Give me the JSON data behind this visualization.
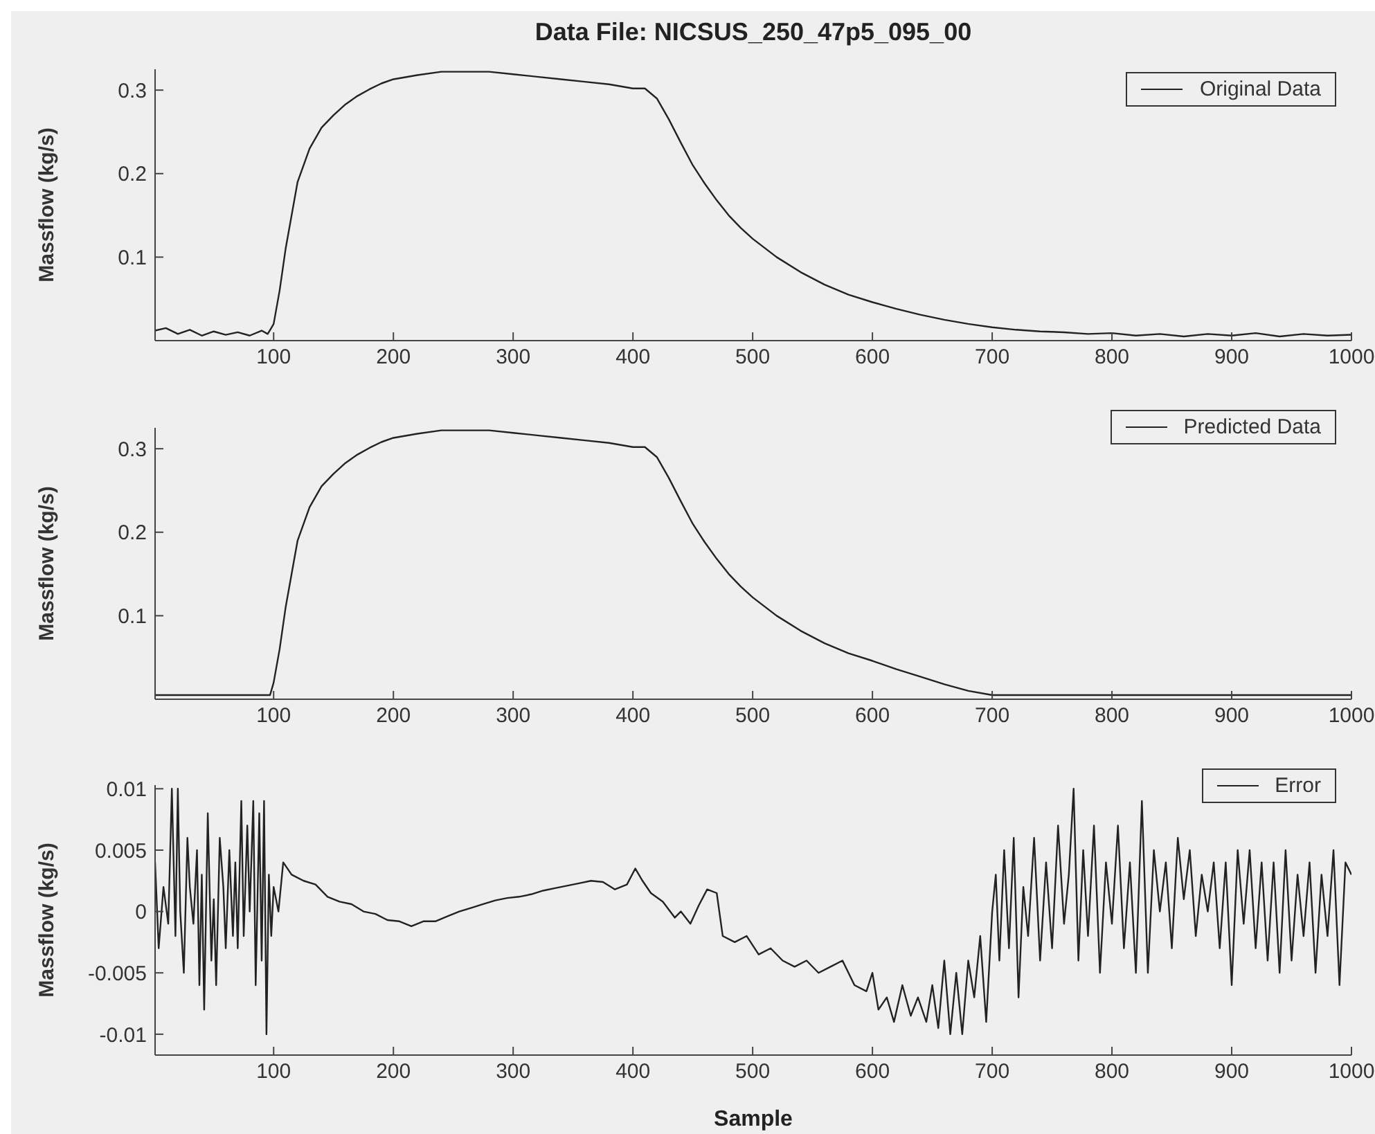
{
  "chart_data": [
    {
      "type": "line",
      "title": "Data File: NICSUS_250_47p5_095_00",
      "ylabel": "Massflow (kg/s)",
      "xlim": [
        1,
        1000
      ],
      "xticks": [
        100,
        200,
        300,
        400,
        500,
        600,
        700,
        800,
        900,
        1000
      ],
      "ylim": [
        0,
        0.325
      ],
      "yticks": [
        0.1,
        0.2,
        0.3
      ],
      "legend": "top right",
      "series": [
        {
          "name": "Original Data",
          "color": "#222222",
          "x": [
            1,
            10,
            20,
            30,
            40,
            50,
            60,
            70,
            80,
            90,
            95,
            98,
            100,
            105,
            110,
            115,
            120,
            130,
            140,
            150,
            160,
            170,
            180,
            190,
            200,
            220,
            240,
            260,
            280,
            300,
            320,
            340,
            360,
            380,
            400,
            410,
            420,
            430,
            440,
            450,
            460,
            470,
            480,
            490,
            500,
            520,
            540,
            560,
            580,
            600,
            620,
            640,
            660,
            680,
            700,
            720,
            740,
            760,
            780,
            800,
            820,
            840,
            860,
            880,
            900,
            920,
            940,
            960,
            980,
            1000
          ],
          "values": [
            0.012,
            0.015,
            0.008,
            0.013,
            0.006,
            0.011,
            0.007,
            0.01,
            0.006,
            0.012,
            0.008,
            0.015,
            0.02,
            0.06,
            0.11,
            0.15,
            0.19,
            0.23,
            0.255,
            0.27,
            0.283,
            0.293,
            0.301,
            0.308,
            0.313,
            0.318,
            0.322,
            0.322,
            0.322,
            0.319,
            0.316,
            0.313,
            0.31,
            0.307,
            0.302,
            0.302,
            0.29,
            0.265,
            0.237,
            0.21,
            0.188,
            0.168,
            0.15,
            0.135,
            0.122,
            0.1,
            0.082,
            0.067,
            0.055,
            0.046,
            0.038,
            0.031,
            0.025,
            0.02,
            0.016,
            0.013,
            0.011,
            0.01,
            0.008,
            0.009,
            0.006,
            0.008,
            0.005,
            0.008,
            0.006,
            0.009,
            0.005,
            0.008,
            0.006,
            0.007
          ]
        }
      ]
    },
    {
      "type": "line",
      "ylabel": "Massflow (kg/s)",
      "xlim": [
        1,
        1000
      ],
      "xticks": [
        100,
        200,
        300,
        400,
        500,
        600,
        700,
        800,
        900,
        1000
      ],
      "ylim": [
        0,
        0.325
      ],
      "yticks": [
        0.1,
        0.2,
        0.3
      ],
      "legend": "top right",
      "series": [
        {
          "name": "Predicted Data",
          "color": "#222222",
          "x": [
            1,
            97,
            100,
            105,
            110,
            115,
            120,
            130,
            140,
            150,
            160,
            170,
            180,
            190,
            200,
            220,
            240,
            260,
            280,
            300,
            320,
            340,
            360,
            380,
            400,
            410,
            420,
            430,
            440,
            450,
            460,
            470,
            480,
            490,
            500,
            520,
            540,
            560,
            580,
            600,
            620,
            640,
            660,
            680,
            700,
            1000
          ],
          "values": [
            0.005,
            0.005,
            0.02,
            0.06,
            0.11,
            0.15,
            0.19,
            0.23,
            0.255,
            0.27,
            0.283,
            0.293,
            0.301,
            0.308,
            0.313,
            0.318,
            0.322,
            0.322,
            0.322,
            0.319,
            0.316,
            0.313,
            0.31,
            0.307,
            0.302,
            0.302,
            0.29,
            0.265,
            0.237,
            0.21,
            0.188,
            0.168,
            0.15,
            0.135,
            0.122,
            0.1,
            0.082,
            0.067,
            0.055,
            0.046,
            0.036,
            0.027,
            0.018,
            0.01,
            0.005,
            0.005
          ]
        }
      ]
    },
    {
      "type": "line",
      "xlabel": "Sample",
      "ylabel": "Massflow (kg/s)",
      "xlim": [
        1,
        1000
      ],
      "xticks": [
        100,
        200,
        300,
        400,
        500,
        600,
        700,
        800,
        900,
        1000
      ],
      "ylim": [
        -0.0117,
        0.0103
      ],
      "yticks": [
        -0.01,
        -0.005,
        0,
        0.005,
        0.01
      ],
      "legend": "top right",
      "series": [
        {
          "name": "Error",
          "color": "#222222",
          "x": [
            1,
            4,
            8,
            12,
            15,
            18,
            20,
            22,
            25,
            28,
            30,
            33,
            36,
            38,
            40,
            42,
            45,
            48,
            50,
            52,
            55,
            58,
            60,
            63,
            66,
            68,
            70,
            73,
            75,
            78,
            80,
            83,
            85,
            88,
            90,
            92,
            94,
            96,
            98,
            100,
            104,
            108,
            115,
            125,
            135,
            145,
            155,
            165,
            175,
            185,
            195,
            205,
            215,
            225,
            235,
            245,
            255,
            265,
            275,
            285,
            295,
            305,
            315,
            325,
            335,
            345,
            355,
            365,
            375,
            385,
            395,
            402,
            408,
            415,
            425,
            435,
            440,
            448,
            455,
            462,
            470,
            475,
            485,
            495,
            505,
            515,
            525,
            535,
            545,
            555,
            565,
            575,
            585,
            595,
            600,
            605,
            612,
            618,
            625,
            632,
            638,
            645,
            650,
            655,
            660,
            665,
            670,
            675,
            680,
            685,
            690,
            695,
            700,
            703,
            706,
            710,
            714,
            718,
            722,
            726,
            730,
            735,
            740,
            745,
            750,
            755,
            760,
            764,
            768,
            772,
            776,
            780,
            785,
            790,
            795,
            800,
            805,
            810,
            815,
            820,
            825,
            830,
            835,
            840,
            845,
            850,
            855,
            860,
            865,
            870,
            875,
            880,
            885,
            890,
            895,
            900,
            905,
            910,
            915,
            920,
            925,
            930,
            935,
            940,
            945,
            950,
            955,
            960,
            965,
            970,
            975,
            980,
            985,
            990,
            995,
            1000
          ],
          "values": [
            0.004,
            -0.003,
            0.002,
            -0.001,
            0.01,
            -0.002,
            0.01,
            0.0,
            -0.005,
            0.006,
            0.002,
            -0.001,
            0.005,
            -0.006,
            0.003,
            -0.008,
            0.008,
            -0.004,
            0.001,
            -0.006,
            0.006,
            0.002,
            -0.003,
            0.005,
            -0.002,
            0.004,
            -0.003,
            0.009,
            -0.002,
            0.007,
            0.0,
            0.009,
            -0.006,
            0.008,
            -0.004,
            0.009,
            -0.01,
            0.003,
            -0.002,
            0.002,
            0.0,
            0.004,
            0.003,
            0.0025,
            0.0022,
            0.0012,
            0.0008,
            0.0006,
            0.0,
            -0.0002,
            -0.0007,
            -0.0008,
            -0.0012,
            -0.0008,
            -0.0008,
            -0.0004,
            0.0,
            0.0003,
            0.0006,
            0.0009,
            0.0011,
            0.0012,
            0.0014,
            0.0017,
            0.0019,
            0.0021,
            0.0023,
            0.0025,
            0.0024,
            0.0018,
            0.0022,
            0.0035,
            0.0025,
            0.0015,
            0.0008,
            -0.0005,
            0.0,
            -0.001,
            0.0005,
            0.0018,
            0.0015,
            -0.002,
            -0.0025,
            -0.002,
            -0.0035,
            -0.003,
            -0.004,
            -0.0045,
            -0.004,
            -0.005,
            -0.0045,
            -0.004,
            -0.006,
            -0.0065,
            -0.005,
            -0.008,
            -0.007,
            -0.009,
            -0.006,
            -0.0085,
            -0.007,
            -0.009,
            -0.006,
            -0.0095,
            -0.004,
            -0.01,
            -0.005,
            -0.01,
            -0.004,
            -0.007,
            -0.002,
            -0.009,
            0.0,
            0.003,
            -0.004,
            0.005,
            -0.003,
            0.006,
            -0.007,
            0.002,
            -0.002,
            0.006,
            -0.004,
            0.004,
            -0.003,
            0.007,
            -0.001,
            0.003,
            0.01,
            -0.004,
            0.005,
            -0.002,
            0.007,
            -0.005,
            0.004,
            -0.001,
            0.007,
            -0.003,
            0.004,
            -0.005,
            0.009,
            -0.005,
            0.005,
            0.0,
            0.004,
            -0.003,
            0.006,
            0.001,
            0.005,
            -0.002,
            0.003,
            0.0,
            0.004,
            -0.003,
            0.004,
            -0.006,
            0.005,
            -0.001,
            0.005,
            -0.003,
            0.004,
            -0.004,
            0.004,
            -0.005,
            0.005,
            -0.004,
            0.003,
            -0.002,
            0.004,
            -0.005,
            0.003,
            -0.002,
            0.005,
            -0.006,
            0.004,
            0.003
          ]
        }
      ]
    }
  ]
}
